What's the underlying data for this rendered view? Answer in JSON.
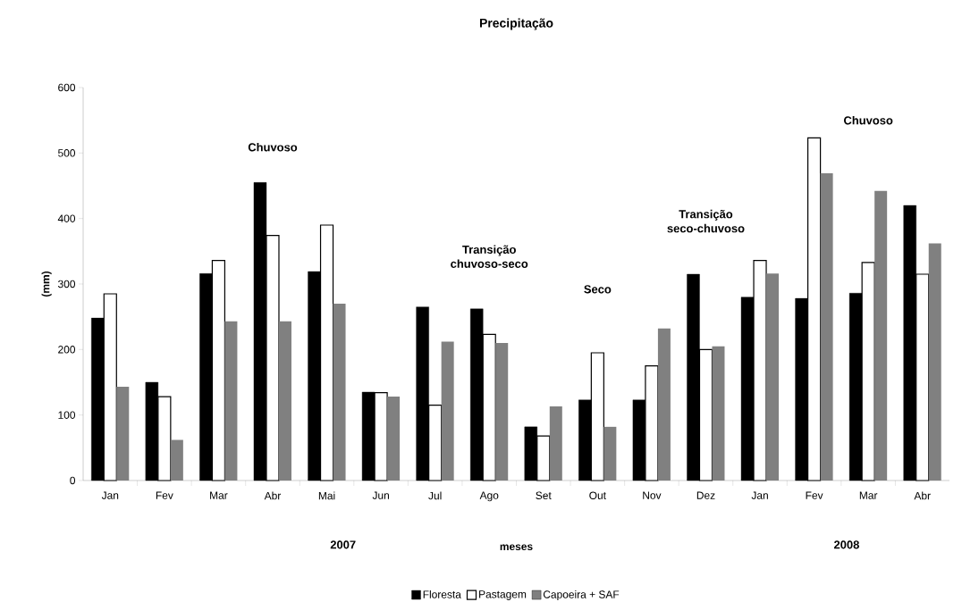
{
  "chart_data": {
    "type": "bar",
    "title": "Precipitação",
    "xlabel": "meses",
    "ylabel": "(mm)",
    "categories": [
      "Jan",
      "Fev",
      "Mar",
      "Abr",
      "Mai",
      "Jun",
      "Jul",
      "Ago",
      "Set",
      "Out",
      "Nov",
      "Dez",
      "Jan",
      "Fev",
      "Mar",
      "Abr"
    ],
    "series": [
      {
        "name": "Floresta",
        "color": "#000000",
        "values": [
          248,
          150,
          316,
          455,
          319,
          135,
          265,
          262,
          82,
          123,
          123,
          315,
          280,
          278,
          286,
          420
        ]
      },
      {
        "name": "Pastagem",
        "color": "#000000",
        "values": [
          285,
          128,
          336,
          374,
          390,
          134,
          115,
          223,
          68,
          195,
          175,
          200,
          336,
          523,
          333,
          315
        ]
      },
      {
        "name": "Capoeira + SAF",
        "color": "#808080",
        "values": [
          143,
          62,
          243,
          243,
          270,
          128,
          212,
          210,
          113,
          82,
          232,
          205,
          316,
          469,
          442,
          362
        ]
      }
    ],
    "annotations": [
      "Chuvoso",
      "Transição chuvoso-seco",
      "Seco",
      "Transição seco-chuvoso",
      "Chuvoso",
      "2007",
      "2008"
    ],
    "ylim": [
      0,
      600
    ],
    "yticks": [
      0,
      100,
      200,
      300,
      400,
      500,
      600
    ],
    "legend": "bottom"
  }
}
